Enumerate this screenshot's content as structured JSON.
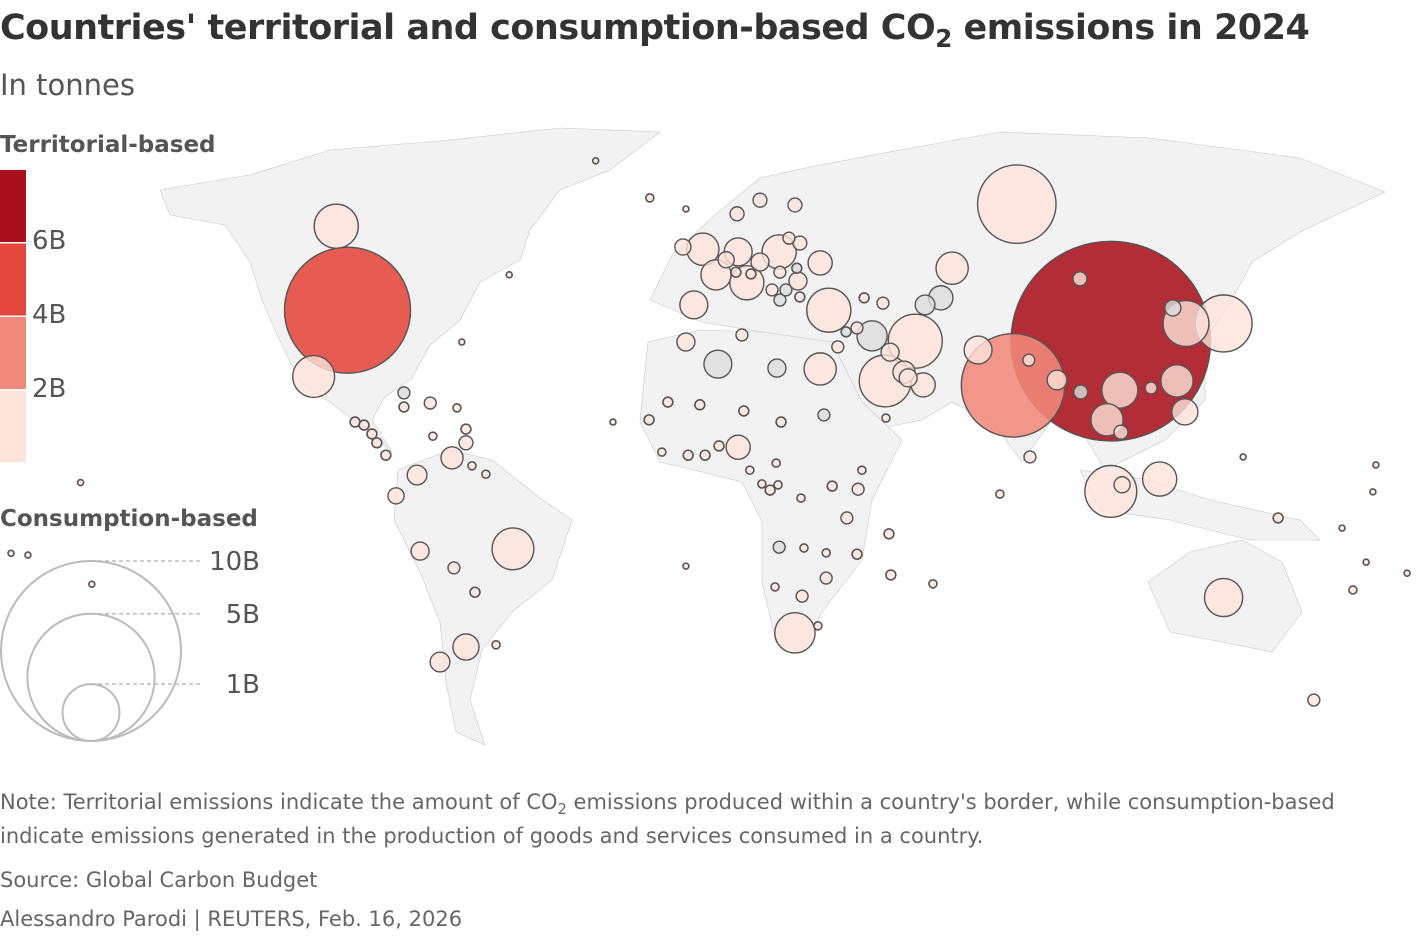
{
  "header": {
    "title_pre": "Countries' territorial and consumption-based CO",
    "title_sub": "2",
    "title_post": " emissions in 2024",
    "subtitle": "In tonnes"
  },
  "legend": {
    "territorial": {
      "heading": "Territorial-based",
      "ticks": [
        "6B",
        "4B",
        "2B"
      ],
      "bins": [
        {
          "range": "> 6B",
          "color": "#a8111b"
        },
        {
          "range": "4B–6B",
          "color": "#e4473c"
        },
        {
          "range": "2B–4B",
          "color": "#f1897b"
        },
        {
          "range": "< 2B",
          "color": "#fde4da"
        }
      ],
      "no_data_color": "#dcdcdc"
    },
    "consumption": {
      "heading": "Consumption-based",
      "sizes": [
        {
          "label": "10B",
          "value": 10
        },
        {
          "label": "5B",
          "value": 5
        },
        {
          "label": "1B",
          "value": 1
        }
      ]
    }
  },
  "chart_data": {
    "type": "bubble-map",
    "size_encoding": "consumption-based emissions (billion tonnes)",
    "color_encoding": "territorial-based emissions bin",
    "fields": [
      "lon",
      "lat",
      "consumption_B",
      "territorial_bin"
    ],
    "bubbles": [
      [
        105,
        33,
        12.3,
        "t4"
      ],
      [
        -98,
        40,
        4.9,
        "t3"
      ],
      [
        79,
        23,
        3.3,
        "t2"
      ],
      [
        80,
        64,
        1.9,
        "t1"
      ],
      [
        135,
        37,
        1.0,
        "t1"
      ],
      [
        125,
        37,
        0.65,
        "t1"
      ],
      [
        -101,
        59,
        0.6,
        "t1"
      ],
      [
        -107,
        25,
        0.54,
        "t1"
      ],
      [
        -54,
        -14,
        0.54,
        "t1"
      ],
      [
        105,
        -1,
        0.83,
        "t1"
      ],
      [
        135,
        -25,
        0.45,
        "t1"
      ],
      [
        21,
        -33,
        0.5,
        "t1"
      ],
      [
        53,
        33,
        0.9,
        "t1"
      ],
      [
        45,
        24,
        0.83,
        "t1"
      ],
      [
        30,
        40,
        0.6,
        "t1"
      ],
      [
        8.2,
        46.2,
        0.36,
        "t1"
      ],
      [
        16.8,
        53.2,
        0.36,
        "t1"
      ],
      [
        5.9,
        53.2,
        0.24,
        "t1"
      ],
      [
        -3.5,
        53.8,
        0.32,
        "t1"
      ],
      [
        0,
        48,
        0.28,
        "t1"
      ],
      [
        -5.9,
        41.2,
        0.24,
        "t1"
      ],
      [
        27.7,
        50.7,
        0.18,
        "t1"
      ],
      [
        21.8,
        46.6,
        0.1,
        "t1"
      ],
      [
        11.7,
        50.9,
        0.1,
        "t1"
      ],
      [
        2.7,
        51.4,
        0.08,
        "t1"
      ],
      [
        5.6,
        61.8,
        0.06,
        "t1"
      ],
      [
        11.7,
        64.9,
        0.06,
        "t1"
      ],
      [
        21,
        63.8,
        0.06,
        "t1"
      ],
      [
        19.4,
        56.3,
        0.044,
        "t1"
      ],
      [
        22.3,
        55.2,
        0.06,
        "t1"
      ],
      [
        17,
        48.6,
        0.044,
        "t1"
      ],
      [
        14.9,
        44.6,
        0.044,
        "t1"
      ],
      [
        17,
        42.3,
        0.044,
        "na"
      ],
      [
        18.6,
        44.6,
        0.044,
        "na"
      ],
      [
        22.3,
        43,
        0.03,
        "t1"
      ],
      [
        21.5,
        49.5,
        0.03,
        "na"
      ],
      [
        5.3,
        48.6,
        0.03,
        "t1"
      ],
      [
        -8.8,
        54.3,
        0.08,
        "t1"
      ],
      [
        9.3,
        48.2,
        0.03,
        "t1"
      ],
      [
        41.5,
        34.2,
        0.28,
        "na"
      ],
      [
        37.5,
        36,
        0.044,
        "t1"
      ],
      [
        34.6,
        35.1,
        0.03,
        "na"
      ],
      [
        32.4,
        31.7,
        0.044,
        "t1"
      ],
      [
        46.3,
        30.5,
        0.1,
        "t1"
      ],
      [
        50,
        26,
        0.15,
        "t1"
      ],
      [
        51.1,
        24.7,
        0.1,
        "t1"
      ],
      [
        55.1,
        23.1,
        0.18,
        "t1"
      ],
      [
        39.4,
        42.8,
        0.03,
        "t1"
      ],
      [
        44.4,
        41.6,
        0.044,
        "t1"
      ],
      [
        55.6,
        41.2,
        0.12,
        "na"
      ],
      [
        59.8,
        42.8,
        0.18,
        "na"
      ],
      [
        62.8,
        49.5,
        0.32,
        "t1"
      ],
      [
        69.7,
        31,
        0.24,
        "t1"
      ],
      [
        83.2,
        28.7,
        0.044,
        "t1"
      ],
      [
        90.7,
        24.2,
        0.12,
        "t1"
      ],
      [
        97,
        21.5,
        0.06,
        "na"
      ],
      [
        96.8,
        47.1,
        0.06,
        "t1"
      ],
      [
        121.5,
        40.5,
        0.08,
        "na"
      ],
      [
        107.4,
        21.9,
        0.4,
        "t1"
      ],
      [
        104,
        15.2,
        0.32,
        "t1"
      ],
      [
        107.7,
        12.4,
        0.06,
        "t1"
      ],
      [
        122.6,
        24,
        0.32,
        "t1"
      ],
      [
        124.7,
        17,
        0.21,
        "t1"
      ],
      [
        115.7,
        22.4,
        0.044,
        "t1"
      ],
      [
        118,
        1.8,
        0.36,
        "t1"
      ],
      [
        108,
        0.5,
        0.08,
        "t1"
      ],
      [
        83.5,
        6.8,
        0.044,
        "t1"
      ],
      [
        75.5,
        -1.6,
        0.02,
        "t1"
      ],
      [
        0.5,
        27.8,
        0.24,
        "na"
      ],
      [
        16.2,
        26.9,
        0.1,
        "na"
      ],
      [
        27.7,
        26.7,
        0.32,
        "t1"
      ],
      [
        6.9,
        34.4,
        0.044,
        "t1"
      ],
      [
        -8,
        32.8,
        0.1,
        "t1"
      ],
      [
        5.9,
        9,
        0.18,
        "t1"
      ],
      [
        28.7,
        16.3,
        0.044,
        "na"
      ],
      [
        -17.8,
        15.2,
        0.03,
        "t1"
      ],
      [
        -12.8,
        19.2,
        0.03,
        "t1"
      ],
      [
        -4.3,
        18.6,
        0.03,
        "t1"
      ],
      [
        7.4,
        17.2,
        0.03,
        "t1"
      ],
      [
        17.3,
        14.7,
        0.03,
        "t1"
      ],
      [
        0.8,
        9.3,
        0.03,
        "t1"
      ],
      [
        -2.9,
        7.2,
        0.03,
        "t1"
      ],
      [
        -7.4,
        7.2,
        0.03,
        "t1"
      ],
      [
        -14.4,
        7.9,
        0.02,
        "t1"
      ],
      [
        9,
        3.8,
        0.02,
        "t1"
      ],
      [
        16,
        5.4,
        0.02,
        "t1"
      ],
      [
        16.5,
        0.5,
        0.02,
        "t1"
      ],
      [
        12.2,
        0.7,
        0.02,
        "t1"
      ],
      [
        14.4,
        -0.7,
        0.03,
        "t1"
      ],
      [
        22.6,
        -2.5,
        0.02,
        "t1"
      ],
      [
        30.9,
        0.2,
        0.03,
        "t1"
      ],
      [
        37.8,
        -0.5,
        0.044,
        "t1"
      ],
      [
        38.8,
        3.8,
        0.02,
        "t1"
      ],
      [
        34.8,
        -7,
        0.044,
        "t1"
      ],
      [
        16.8,
        -13.6,
        0.044,
        "na"
      ],
      [
        23.4,
        -13.8,
        0.02,
        "t1"
      ],
      [
        29.3,
        -14.9,
        0.02,
        "t1"
      ],
      [
        37.5,
        -15.2,
        0.03,
        "t1"
      ],
      [
        46,
        -10.6,
        0.03,
        "t1"
      ],
      [
        29.3,
        -20.6,
        0.044,
        "t1"
      ],
      [
        46.5,
        -19.9,
        0.03,
        "t1"
      ],
      [
        22.9,
        -24.7,
        0.044,
        "t1"
      ],
      [
        15.7,
        -22.6,
        0.02,
        "t1"
      ],
      [
        27.1,
        -31.4,
        0.02,
        "t1"
      ],
      [
        57.7,
        -21.9,
        0.02,
        "t1"
      ],
      [
        45.2,
        15.6,
        0.02,
        "t1"
      ],
      [
        -27.4,
        14.7,
        0.011,
        "t1"
      ],
      [
        -8,
        -17.9,
        0.011,
        "t1"
      ],
      [
        -83,
        21.3,
        0.044,
        "na"
      ],
      [
        -83,
        18.1,
        0.03,
        "t1"
      ],
      [
        -76,
        19,
        0.044,
        "t1"
      ],
      [
        -68.9,
        17.9,
        0.02,
        "t1"
      ],
      [
        -66.5,
        13.1,
        0.03,
        "t1"
      ],
      [
        -66.5,
        10,
        0.06,
        "t1"
      ],
      [
        -70.2,
        6.6,
        0.15,
        "t1"
      ],
      [
        -75.3,
        11.5,
        0.02,
        "t1"
      ],
      [
        -79.5,
        2.7,
        0.12,
        "t1"
      ],
      [
        -85.1,
        -2,
        0.08,
        "t1"
      ],
      [
        -78.7,
        -14.5,
        0.1,
        "t1"
      ],
      [
        -69.7,
        -18.3,
        0.044,
        "t1"
      ],
      [
        -64.1,
        -23.8,
        0.03,
        "t1"
      ],
      [
        -66.5,
        -36.2,
        0.21,
        "t1"
      ],
      [
        -73.4,
        -39.6,
        0.12,
        "t1"
      ],
      [
        -58.5,
        -35.7,
        0.02,
        "t1"
      ],
      [
        -61.2,
        2.9,
        0.02,
        "t1"
      ],
      [
        -64.9,
        4.8,
        0.02,
        "t1"
      ],
      [
        -96,
        14.7,
        0.03,
        "t1"
      ],
      [
        -93.6,
        14,
        0.03,
        "t1"
      ],
      [
        -91.5,
        12,
        0.03,
        "t1"
      ],
      [
        -90.2,
        10,
        0.03,
        "t1"
      ],
      [
        -87.8,
        7.2,
        0.03,
        "t1"
      ],
      [
        -67.6,
        32.8,
        0.011,
        "t1"
      ],
      [
        -55,
        48,
        0.011,
        "t1"
      ],
      [
        -32,
        73.8,
        0.011,
        "t1"
      ],
      [
        -17.6,
        65.4,
        0.02,
        "t1"
      ],
      [
        -8,
        62.9,
        0.011,
        "t1"
      ],
      [
        140.2,
        6.8,
        0.011,
        "t1"
      ],
      [
        175.5,
        5,
        0.011,
        "t1"
      ],
      [
        174.7,
        -1.1,
        0.011,
        "t1"
      ],
      [
        149.5,
        -7,
        0.03,
        "t1"
      ],
      [
        166.5,
        -9.3,
        0.011,
        "t1"
      ],
      [
        159,
        -48.2,
        0.044,
        "t1"
      ],
      [
        169.4,
        -23.3,
        0.02,
        "t1"
      ],
      [
        172.9,
        -17,
        0.011,
        "t1"
      ],
      [
        183.8,
        -19.5,
        0.011,
        "t1"
      ],
      [
        -169,
        1,
        0.011,
        "t1"
      ],
      [
        -187.5,
        -15,
        0.011,
        "t1"
      ],
      [
        -183,
        -15.4,
        0.011,
        "t1"
      ],
      [
        -166,
        -22,
        0.011,
        "t1"
      ]
    ]
  },
  "footer": {
    "note_pre": "Note: Territorial emissions indicate the amount of CO",
    "note_sub": "2",
    "note_post": " emissions produced within a country's border, while consumption-based",
    "note_line2": "indicate emissions generated in the production of goods and services consumed in a country.",
    "source": "Source: Global Carbon Budget",
    "credit": "Alessandro Parodi | REUTERS, Feb. 16, 2026"
  }
}
